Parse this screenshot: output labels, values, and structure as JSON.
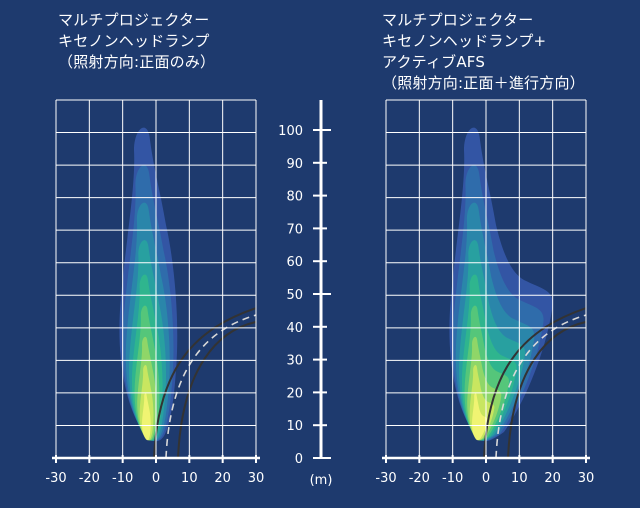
{
  "left_panel": {
    "title_lines": [
      "マルチプロジェクター",
      "キセノンヘッドランプ",
      "（照射方向:正面のみ）"
    ],
    "x_ticks": [
      "-30",
      "-20",
      "-10",
      "0",
      "10",
      "20",
      "30"
    ]
  },
  "right_panel": {
    "title_lines": [
      "マルチプロジェクター",
      "キセノンヘッドランプ+",
      "アクティブAFS",
      "（照射方向:正面＋進行方向）"
    ],
    "x_ticks": [
      "-30",
      "-20",
      "-10",
      "0",
      "10",
      "20",
      "30"
    ]
  },
  "center_axis": {
    "ticks": [
      "0",
      "10",
      "20",
      "30",
      "40",
      "50",
      "60",
      "70",
      "80",
      "90",
      "100"
    ],
    "unit": "(m)"
  },
  "colors": {
    "background": "#1e3a6e",
    "grid": "#ffffff",
    "light_levels": [
      "#3556a6",
      "#2f6cab",
      "#2a86aa",
      "#28a0a0",
      "#2fb58e",
      "#55c67a",
      "#8fd668",
      "#c8e660",
      "#f0f472"
    ],
    "road_line": "#333333",
    "road_center": "#d8d8d8"
  }
}
